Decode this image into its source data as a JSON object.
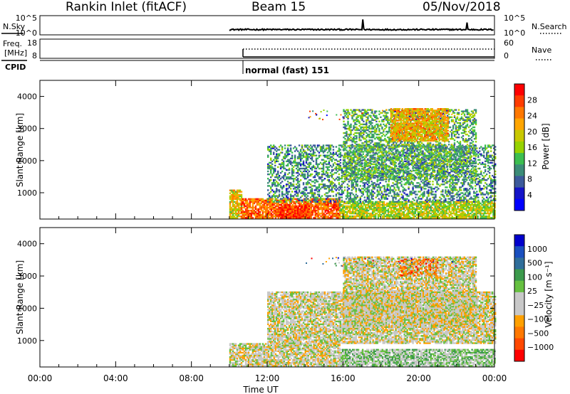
{
  "header": {
    "station": "Rankin Inlet (fitACF)",
    "beam": "Beam 15",
    "date": "05/Nov/2018"
  },
  "noise_panel": {
    "left_label": "N.Sky",
    "right_label": "N.Search",
    "ticks": [
      "10^5",
      "10^0"
    ],
    "right_ticks": [
      "10^5",
      "10^0"
    ]
  },
  "freq_panel": {
    "left_label_1": "Freq.",
    "left_label_2": "[MHz]",
    "right_label": "Nave",
    "ticks": [
      "18",
      "8"
    ],
    "right_ticks": [
      "60",
      "0"
    ]
  },
  "cpid_panel": {
    "label": "CPID",
    "mode_text": "normal (fast) 151"
  },
  "power_panel": {
    "ylabel": "Slant Range [km]",
    "yticks": [
      "4000",
      "3000",
      "2000",
      "1000"
    ],
    "colorbar_label": "Power [dB]",
    "colorbar_ticks": [
      "28",
      "24",
      "20",
      "16",
      "12",
      "8",
      "4"
    ],
    "colors": [
      "#ff0000",
      "#ff3c00",
      "#ff7800",
      "#ffa500",
      "#c8c800",
      "#96d200",
      "#3cbe50",
      "#3c8c78",
      "#3c5a9b",
      "#1414c8",
      "#0000ff"
    ]
  },
  "velocity_panel": {
    "ylabel": "Slant Range [km]",
    "yticks": [
      "4000",
      "3000",
      "2000",
      "1000"
    ],
    "colorbar_label": "Velocity [m s⁻¹]",
    "colorbar_ticks": [
      "1000",
      "500",
      "100",
      "25",
      "−25",
      "−100",
      "−500",
      "−1000"
    ],
    "colors": [
      "#0000cc",
      "#1a4fbf",
      "#2f6e9a",
      "#3c9a4c",
      "#66c040",
      "#c8c8c8",
      "#c8c8c8",
      "#ffa000",
      "#ff7800",
      "#ff4800",
      "#ff0000"
    ]
  },
  "xaxis": {
    "label": "Time UT",
    "ticks": [
      "00:00",
      "04:00",
      "08:00",
      "12:00",
      "16:00",
      "20:00",
      "00:00"
    ]
  },
  "chart_data": [
    {
      "type": "heatmap",
      "title": "Rankin Inlet (fitACF) Beam 15 05/Nov/2018 — Power",
      "xlabel": "Time UT",
      "ylabel": "Slant Range [km]",
      "xlim": [
        0,
        24
      ],
      "ylim": [
        180,
        4500
      ],
      "colorbar": {
        "label": "Power [dB]",
        "range": [
          0,
          30
        ]
      },
      "data_start_hour": 10.0,
      "regions": [
        {
          "t": [
            10.0,
            10.6
          ],
          "r": [
            200,
            1100
          ],
          "value_db": 18
        },
        {
          "t": [
            10.6,
            15.8
          ],
          "r": [
            200,
            800
          ],
          "value_db": 24
        },
        {
          "t": [
            12.6,
            14.2
          ],
          "r": [
            200,
            600
          ],
          "value_db": 28
        },
        {
          "t": [
            15.8,
            24.0
          ],
          "r": [
            200,
            700
          ],
          "value_db": 16
        },
        {
          "t": [
            12.0,
            24.0
          ],
          "r": [
            700,
            2500
          ],
          "value_db": 10
        },
        {
          "t": [
            16.0,
            23.0
          ],
          "r": [
            1400,
            3600
          ],
          "value_db": 12
        },
        {
          "t": [
            18.5,
            21.5
          ],
          "r": [
            2600,
            3600
          ],
          "value_db": 20
        }
      ]
    },
    {
      "type": "heatmap",
      "title": "Rankin Inlet (fitACF) Beam 15 05/Nov/2018 — Velocity",
      "xlabel": "Time UT",
      "ylabel": "Slant Range [km]",
      "xlim": [
        0,
        24
      ],
      "ylim": [
        180,
        4500
      ],
      "colorbar": {
        "label": "Velocity [m s⁻¹]",
        "range": [
          -1000,
          1000
        ]
      },
      "data_start_hour": 10.0,
      "regions": [
        {
          "t": [
            10.0,
            15.8
          ],
          "r": [
            200,
            900
          ],
          "value_ms": -100
        },
        {
          "t": [
            15.8,
            24.0
          ],
          "r": [
            200,
            700
          ],
          "value_ms": 100
        },
        {
          "t": [
            12.0,
            24.0
          ],
          "r": [
            900,
            2500
          ],
          "value_ms": -100
        },
        {
          "t": [
            16.0,
            23.0
          ],
          "r": [
            1400,
            3600
          ],
          "value_ms": -100
        },
        {
          "t": [
            19.0,
            21.0
          ],
          "r": [
            3000,
            3500
          ],
          "value_ms": -500
        }
      ]
    },
    {
      "type": "line",
      "title": "N.Sky / N.Search",
      "ylim_log10": [
        0,
        5
      ],
      "x_hours": [
        10.0,
        14.0,
        17.0,
        17.1,
        20.0,
        22.5,
        22.6,
        24.0
      ],
      "n_sky_log10": [
        1.2,
        1.3,
        1.2,
        4.0,
        1.3,
        1.4,
        3.2,
        1.3
      ]
    },
    {
      "type": "line",
      "title": "Freq. [MHz] / Nave",
      "ylim": [
        8,
        18
      ],
      "x_hours": [
        10.0,
        24.0
      ],
      "freq_mhz": [
        10.0,
        10.0
      ],
      "nave": [
        42,
        42
      ]
    }
  ]
}
